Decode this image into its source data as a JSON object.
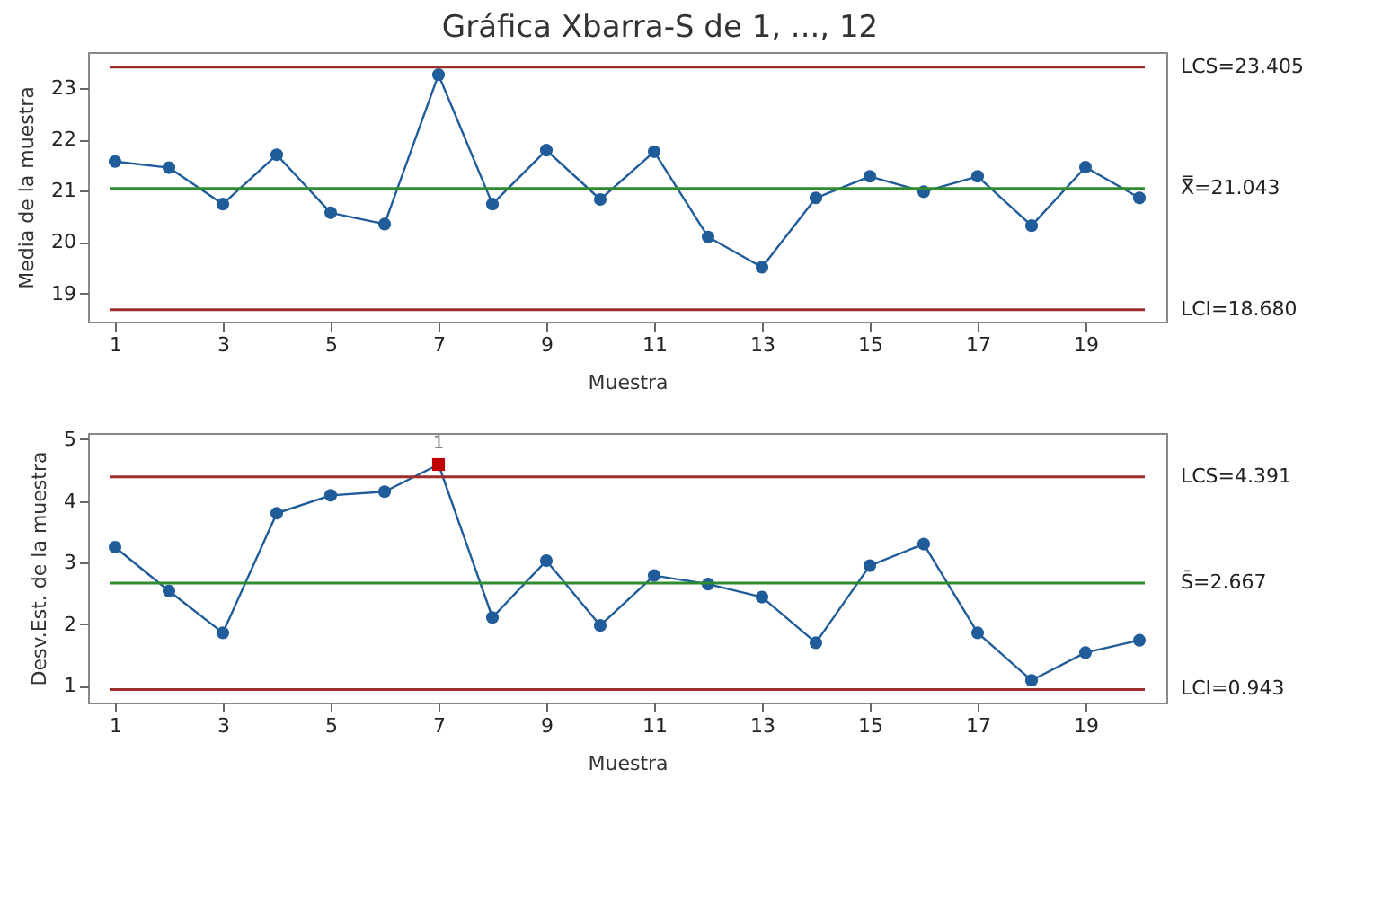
{
  "chart_data": [
    {
      "type": "line",
      "title": "Gráfica Xbarra-S de 1, ..., 12",
      "xlabel": "Muestra",
      "ylabel": "Media de la muestra",
      "x": [
        1,
        2,
        3,
        4,
        5,
        6,
        7,
        8,
        9,
        10,
        11,
        12,
        13,
        14,
        15,
        16,
        17,
        18,
        19,
        20
      ],
      "series": [
        {
          "type": "line",
          "color": "#1f5c99",
          "marker": "circle",
          "values": [
            21.57,
            21.45,
            20.74,
            21.7,
            20.57,
            20.35,
            23.26,
            20.74,
            21.79,
            20.83,
            21.76,
            20.1,
            19.51,
            20.86,
            21.28,
            20.98,
            21.28,
            20.32,
            21.46,
            20.86
          ]
        }
      ],
      "xlim": [
        0.5,
        20.5
      ],
      "xticks": [
        1,
        3,
        5,
        7,
        9,
        11,
        13,
        15,
        17,
        19
      ],
      "ylim": [
        18.45,
        23.7
      ],
      "yticks": [
        19,
        20,
        21,
        22,
        23
      ],
      "ref_lines": [
        {
          "axis": "y",
          "value": 23.405,
          "label": "LCS=23.405",
          "color": "#9b2d2d"
        },
        {
          "axis": "y",
          "value": 21.043,
          "label": "X̿=21.043",
          "color": "#2e8b2e"
        },
        {
          "axis": "y",
          "value": 18.68,
          "label": "LCI=18.680",
          "color": "#9b2d2d"
        }
      ],
      "grid": false,
      "legend": false
    },
    {
      "type": "line",
      "xlabel": "Muestra",
      "ylabel": "Desv.Est. de la muestra",
      "x": [
        1,
        2,
        3,
        4,
        5,
        6,
        7,
        8,
        9,
        10,
        11,
        12,
        13,
        14,
        15,
        16,
        17,
        18,
        19,
        20
      ],
      "series": [
        {
          "type": "line",
          "color": "#1f5c99",
          "marker": "none",
          "values": [
            3.25,
            2.54,
            1.86,
            3.8,
            4.09,
            4.15,
            4.59,
            2.11,
            3.03,
            1.98,
            2.79,
            2.65,
            2.44,
            1.7,
            2.95,
            3.3,
            1.86,
            1.09,
            1.54,
            1.74
          ]
        },
        {
          "type": "scatter",
          "color": "#1f5c99",
          "marker": "circle",
          "values": [
            3.25,
            2.54,
            1.86,
            3.8,
            4.09,
            4.15,
            null,
            2.11,
            3.03,
            1.98,
            2.79,
            2.65,
            2.44,
            1.7,
            2.95,
            3.3,
            1.86,
            1.09,
            1.54,
            1.74
          ]
        },
        {
          "type": "scatter",
          "color": "#c00000",
          "marker": "square",
          "x": [
            7
          ],
          "values": [
            4.59
          ]
        }
      ],
      "xlim": [
        0.5,
        20.5
      ],
      "xticks": [
        1,
        3,
        5,
        7,
        9,
        11,
        13,
        15,
        17,
        19
      ],
      "ylim": [
        0.73,
        5.1
      ],
      "yticks": [
        1,
        2,
        3,
        4,
        5
      ],
      "ref_lines": [
        {
          "axis": "y",
          "value": 4.391,
          "label": "LCS=4.391",
          "color": "#9b2d2d"
        },
        {
          "axis": "y",
          "value": 2.667,
          "label": "S̄=2.667",
          "color": "#2e8b2e"
        },
        {
          "axis": "y",
          "value": 0.943,
          "label": "LCI=0.943",
          "color": "#9b2d2d"
        }
      ],
      "annotations": [
        {
          "text": "1",
          "x": 7,
          "y": 4.59
        }
      ],
      "grid": false,
      "legend": false
    }
  ]
}
